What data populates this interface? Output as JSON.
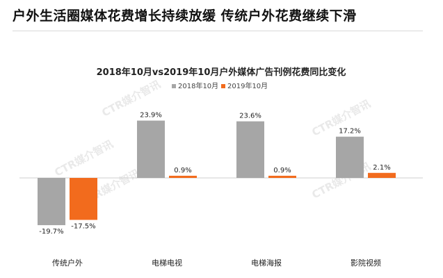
{
  "headline": "户外生活圈媒体花费增长持续放缓 传统户外花费继续下滑",
  "watermark": "CTR媒介智讯",
  "colors": {
    "series_2018": "#a6a6a6",
    "series_2019": "#f26b1d"
  },
  "chart_data": {
    "type": "bar",
    "title": "2018年10月vs2019年10月户外媒体广告刊例花费同比变化",
    "xlabel": "",
    "ylabel": "",
    "legend_position": "top-center",
    "grid": false,
    "ylim": [
      -25,
      28
    ],
    "categories": [
      "传统户外",
      "电梯电视",
      "电梯海报",
      "影院视频"
    ],
    "series": [
      {
        "name": "2018年10月",
        "values": [
          -19.7,
          23.9,
          23.6,
          17.2
        ],
        "labels": [
          "-19.7%",
          "23.9%",
          "23.6%",
          "17.2%"
        ]
      },
      {
        "name": "2019年10月",
        "values": [
          -17.5,
          0.9,
          0.9,
          2.1
        ],
        "labels": [
          "-17.5%",
          "0.9%",
          "0.9%",
          "2.1%"
        ]
      }
    ]
  }
}
